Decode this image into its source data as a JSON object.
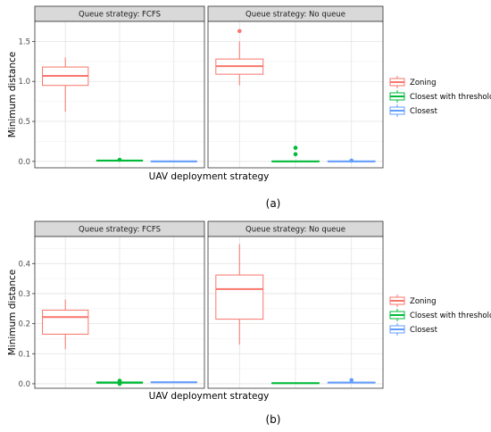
{
  "chart_data": [
    {
      "type": "box",
      "panel_label": "(a)",
      "xlabel": "UAV deployment strategy",
      "ylabel": "Minimum distance",
      "ylim": [
        -0.08,
        1.75
      ],
      "yticks": [
        "0.0",
        "0.5",
        "1.0",
        "1.5"
      ],
      "ytick_values": [
        0.0,
        0.5,
        1.0,
        1.5
      ],
      "grid": true,
      "legend_position": "right",
      "series": [
        {
          "name": "Zoning",
          "color": "#F8766D"
        },
        {
          "name": "Closest with threshold",
          "color": "#00BA38"
        },
        {
          "name": "Closest",
          "color": "#619CFF"
        }
      ],
      "facets": [
        {
          "strip": "Queue strategy: FCFS",
          "boxes": [
            {
              "series": "Zoning",
              "min": 0.62,
              "q1": 0.95,
              "median": 1.07,
              "q3": 1.18,
              "max": 1.3,
              "outliers": []
            },
            {
              "series": "Closest with threshold",
              "min": 0.0,
              "q1": 0.005,
              "median": 0.01,
              "q3": 0.015,
              "max": 0.02,
              "outliers": [
                0.02
              ]
            },
            {
              "series": "Closest",
              "min": 0.0,
              "q1": 0.0,
              "median": 0.0,
              "q3": 0.005,
              "max": 0.005,
              "outliers": []
            }
          ]
        },
        {
          "strip": "Queue strategy: No queue",
          "boxes": [
            {
              "series": "Zoning",
              "min": 0.95,
              "q1": 1.09,
              "median": 1.19,
              "q3": 1.28,
              "max": 1.5,
              "outliers": [
                1.63
              ]
            },
            {
              "series": "Closest with threshold",
              "min": 0.0,
              "q1": 0.0,
              "median": 0.0,
              "q3": 0.005,
              "max": 0.005,
              "outliers": [
                0.09,
                0.17
              ]
            },
            {
              "series": "Closest",
              "min": 0.0,
              "q1": 0.0,
              "median": 0.0,
              "q3": 0.005,
              "max": 0.005,
              "outliers": [
                0.01
              ]
            }
          ]
        }
      ]
    },
    {
      "type": "box",
      "panel_label": "(b)",
      "xlabel": "UAV deployment strategy",
      "ylabel": "Minimum distance",
      "ylim": [
        -0.015,
        0.49
      ],
      "yticks": [
        "0.0",
        "0.1",
        "0.2",
        "0.3",
        "0.4"
      ],
      "ytick_values": [
        0.0,
        0.1,
        0.2,
        0.3,
        0.4
      ],
      "grid": true,
      "legend_position": "right",
      "series": [
        {
          "name": "Zoning",
          "color": "#F8766D"
        },
        {
          "name": "Closest with threshold",
          "color": "#00BA38"
        },
        {
          "name": "Closest",
          "color": "#619CFF"
        }
      ],
      "facets": [
        {
          "strip": "Queue strategy: FCFS",
          "boxes": [
            {
              "series": "Zoning",
              "min": 0.115,
              "q1": 0.165,
              "median": 0.222,
              "q3": 0.245,
              "max": 0.28,
              "outliers": []
            },
            {
              "series": "Closest with threshold",
              "min": 0.0,
              "q1": 0.002,
              "median": 0.004,
              "q3": 0.006,
              "max": 0.008,
              "outliers": [
                0.0,
                0.01
              ]
            },
            {
              "series": "Closest",
              "min": 0.003,
              "q1": 0.004,
              "median": 0.005,
              "q3": 0.006,
              "max": 0.007,
              "outliers": []
            }
          ]
        },
        {
          "strip": "Queue strategy: No queue",
          "boxes": [
            {
              "series": "Zoning",
              "min": 0.13,
              "q1": 0.215,
              "median": 0.315,
              "q3": 0.362,
              "max": 0.465,
              "outliers": []
            },
            {
              "series": "Closest with threshold",
              "min": 0.0,
              "q1": 0.001,
              "median": 0.002,
              "q3": 0.003,
              "max": 0.004,
              "outliers": []
            },
            {
              "series": "Closest",
              "min": 0.002,
              "q1": 0.003,
              "median": 0.004,
              "q3": 0.005,
              "max": 0.006,
              "outliers": [
                0.012
              ]
            }
          ]
        }
      ]
    }
  ]
}
